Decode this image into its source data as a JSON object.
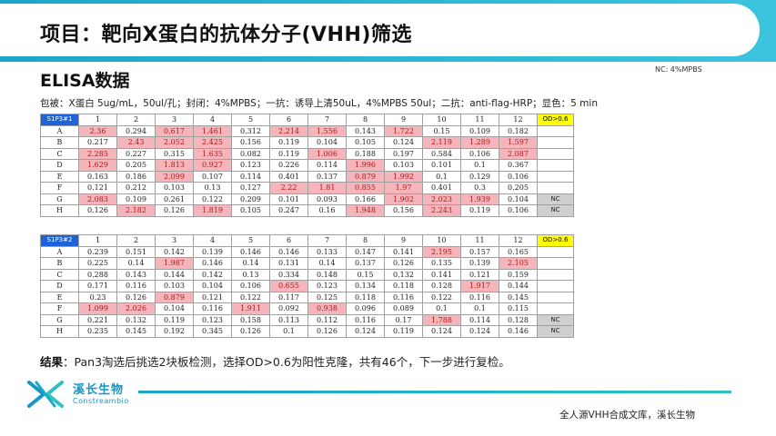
{
  "header": {
    "title": "项目：靶向X蛋白的抗体分子(VHH)筛选"
  },
  "section_title": "ELISA数据",
  "nc_note": "NC:  4%MPBS",
  "protocol": "包被：X蛋白 5ug/mL，50ul/孔；封闭：4%MPBS；一抗：诱导上清50uL，4%MPBS 50ul；二抗：anti-flag-HRP；显色：5 min",
  "plate1": {
    "label": "S1P3#1",
    "columns": [
      "1",
      "2",
      "3",
      "4",
      "5",
      "6",
      "7",
      "8",
      "9",
      "10",
      "11",
      "12"
    ],
    "threshold_label": "OD>0.6",
    "rows": [
      {
        "row": "A",
        "values": [
          "2.36",
          "0.294",
          "0.617",
          "1.461",
          "0.312",
          "2.214",
          "1.556",
          "0.143",
          "1.722",
          "0.15",
          "0.109",
          "0.182"
        ],
        "extra": ""
      },
      {
        "row": "B",
        "values": [
          "0.217",
          "2.43",
          "2.052",
          "2.425",
          "0.156",
          "0.119",
          "0.104",
          "0.105",
          "0.124",
          "2.119",
          "1.289",
          "1.597"
        ],
        "extra": ""
      },
      {
        "row": "C",
        "values": [
          "2.285",
          "0.227",
          "0.315",
          "1.635",
          "0.082",
          "0.119",
          "1.006",
          "0.188",
          "0.197",
          "0.584",
          "0.106",
          "2.087"
        ],
        "extra": ""
      },
      {
        "row": "D",
        "values": [
          "1.629",
          "0.205",
          "1.813",
          "0.927",
          "0.123",
          "0.226",
          "0.114",
          "1.996",
          "0.103",
          "0.101",
          "0.1",
          "0.367"
        ],
        "extra": ""
      },
      {
        "row": "E",
        "values": [
          "0.163",
          "0.186",
          "2.099",
          "0.107",
          "0.114",
          "0.401",
          "0.137",
          "0.879",
          "1.992",
          "0.1",
          "0.129",
          "0.106"
        ],
        "extra": ""
      },
      {
        "row": "F",
        "values": [
          "0.121",
          "0.212",
          "0.103",
          "0.13",
          "0.127",
          "2.22",
          "1.81",
          "0.855",
          "1.97",
          "0.401",
          "0.3",
          "0.205"
        ],
        "extra": ""
      },
      {
        "row": "G",
        "values": [
          "2.083",
          "0.109",
          "0.261",
          "0.122",
          "0.209",
          "0.101",
          "0.093",
          "0.166",
          "1.902",
          "2.023",
          "1.939",
          "0.104"
        ],
        "extra": "NC"
      },
      {
        "row": "H",
        "values": [
          "0.126",
          "2.182",
          "0.126",
          "1.819",
          "0.105",
          "0.247",
          "0.16",
          "1.948",
          "0.156",
          "2.243",
          "0.119",
          "0.106"
        ],
        "extra": "NC"
      }
    ]
  },
  "plate2": {
    "label": "S1P3#2",
    "columns": [
      "1",
      "2",
      "3",
      "4",
      "5",
      "6",
      "7",
      "8",
      "9",
      "10",
      "11",
      "12"
    ],
    "threshold_label": "OD>0.6",
    "rows": [
      {
        "row": "A",
        "values": [
          "0.239",
          "0.151",
          "0.142",
          "0.139",
          "0.146",
          "0.146",
          "0.133",
          "0.147",
          "0.141",
          "2.195",
          "0.157",
          "0.165"
        ],
        "extra": ""
      },
      {
        "row": "B",
        "values": [
          "0.225",
          "0.14",
          "1.987",
          "0.146",
          "0.14",
          "0.131",
          "0.14",
          "0.137",
          "0.126",
          "0.135",
          "0.139",
          "2.105"
        ],
        "extra": ""
      },
      {
        "row": "C",
        "values": [
          "0.288",
          "0.143",
          "0.144",
          "0.142",
          "0.13",
          "0.334",
          "0.148",
          "0.15",
          "0.132",
          "0.141",
          "0.121",
          "0.159"
        ],
        "extra": ""
      },
      {
        "row": "D",
        "values": [
          "0.171",
          "0.116",
          "0.103",
          "0.104",
          "0.106",
          "0.655",
          "0.123",
          "0.134",
          "0.118",
          "0.128",
          "1.917",
          "0.144"
        ],
        "extra": ""
      },
      {
        "row": "E",
        "values": [
          "0.23",
          "0.126",
          "0.879",
          "0.121",
          "0.122",
          "0.117",
          "0.125",
          "0.118",
          "0.116",
          "0.122",
          "0.116",
          "0.145"
        ],
        "extra": ""
      },
      {
        "row": "F",
        "values": [
          "1.099",
          "2.026",
          "0.104",
          "0.116",
          "1.911",
          "0.092",
          "0.938",
          "0.096",
          "0.089",
          "0.1",
          "0.1",
          "0.115"
        ],
        "extra": ""
      },
      {
        "row": "G",
        "values": [
          "0.221",
          "0.132",
          "0.119",
          "0.123",
          "0.158",
          "0.113",
          "0.112",
          "0.116",
          "0.17",
          "1.788",
          "0.114",
          "0.128"
        ],
        "extra": "NC"
      },
      {
        "row": "H",
        "values": [
          "0.235",
          "0.145",
          "0.192",
          "0.345",
          "0.126",
          "0.1",
          "0.126",
          "0.124",
          "0.119",
          "0.124",
          "0.124",
          "0.146"
        ],
        "extra": "NC"
      }
    ]
  },
  "threshold": 0.6,
  "colors": {
    "highlight_bg": "#f5b5bb",
    "highlight_text": "#b01818",
    "plate_label_bg": "#1f63d8",
    "threshold_bg": "#ffff00",
    "nc_bg": "#cfcfcf",
    "brand": "#1597c3"
  },
  "result": {
    "label": "结果",
    "text": "：Pan3淘选后挑选2块板检测，选择OD>0.6为阳性克隆，共有46个，下一步进行复检。"
  },
  "logo": {
    "name": "溪长生物",
    "subtitle": "Constreambio",
    "icon": "x-brand-logo-icon"
  },
  "footer": {
    "text": "全人源VHH合成文库，溪长生物"
  }
}
